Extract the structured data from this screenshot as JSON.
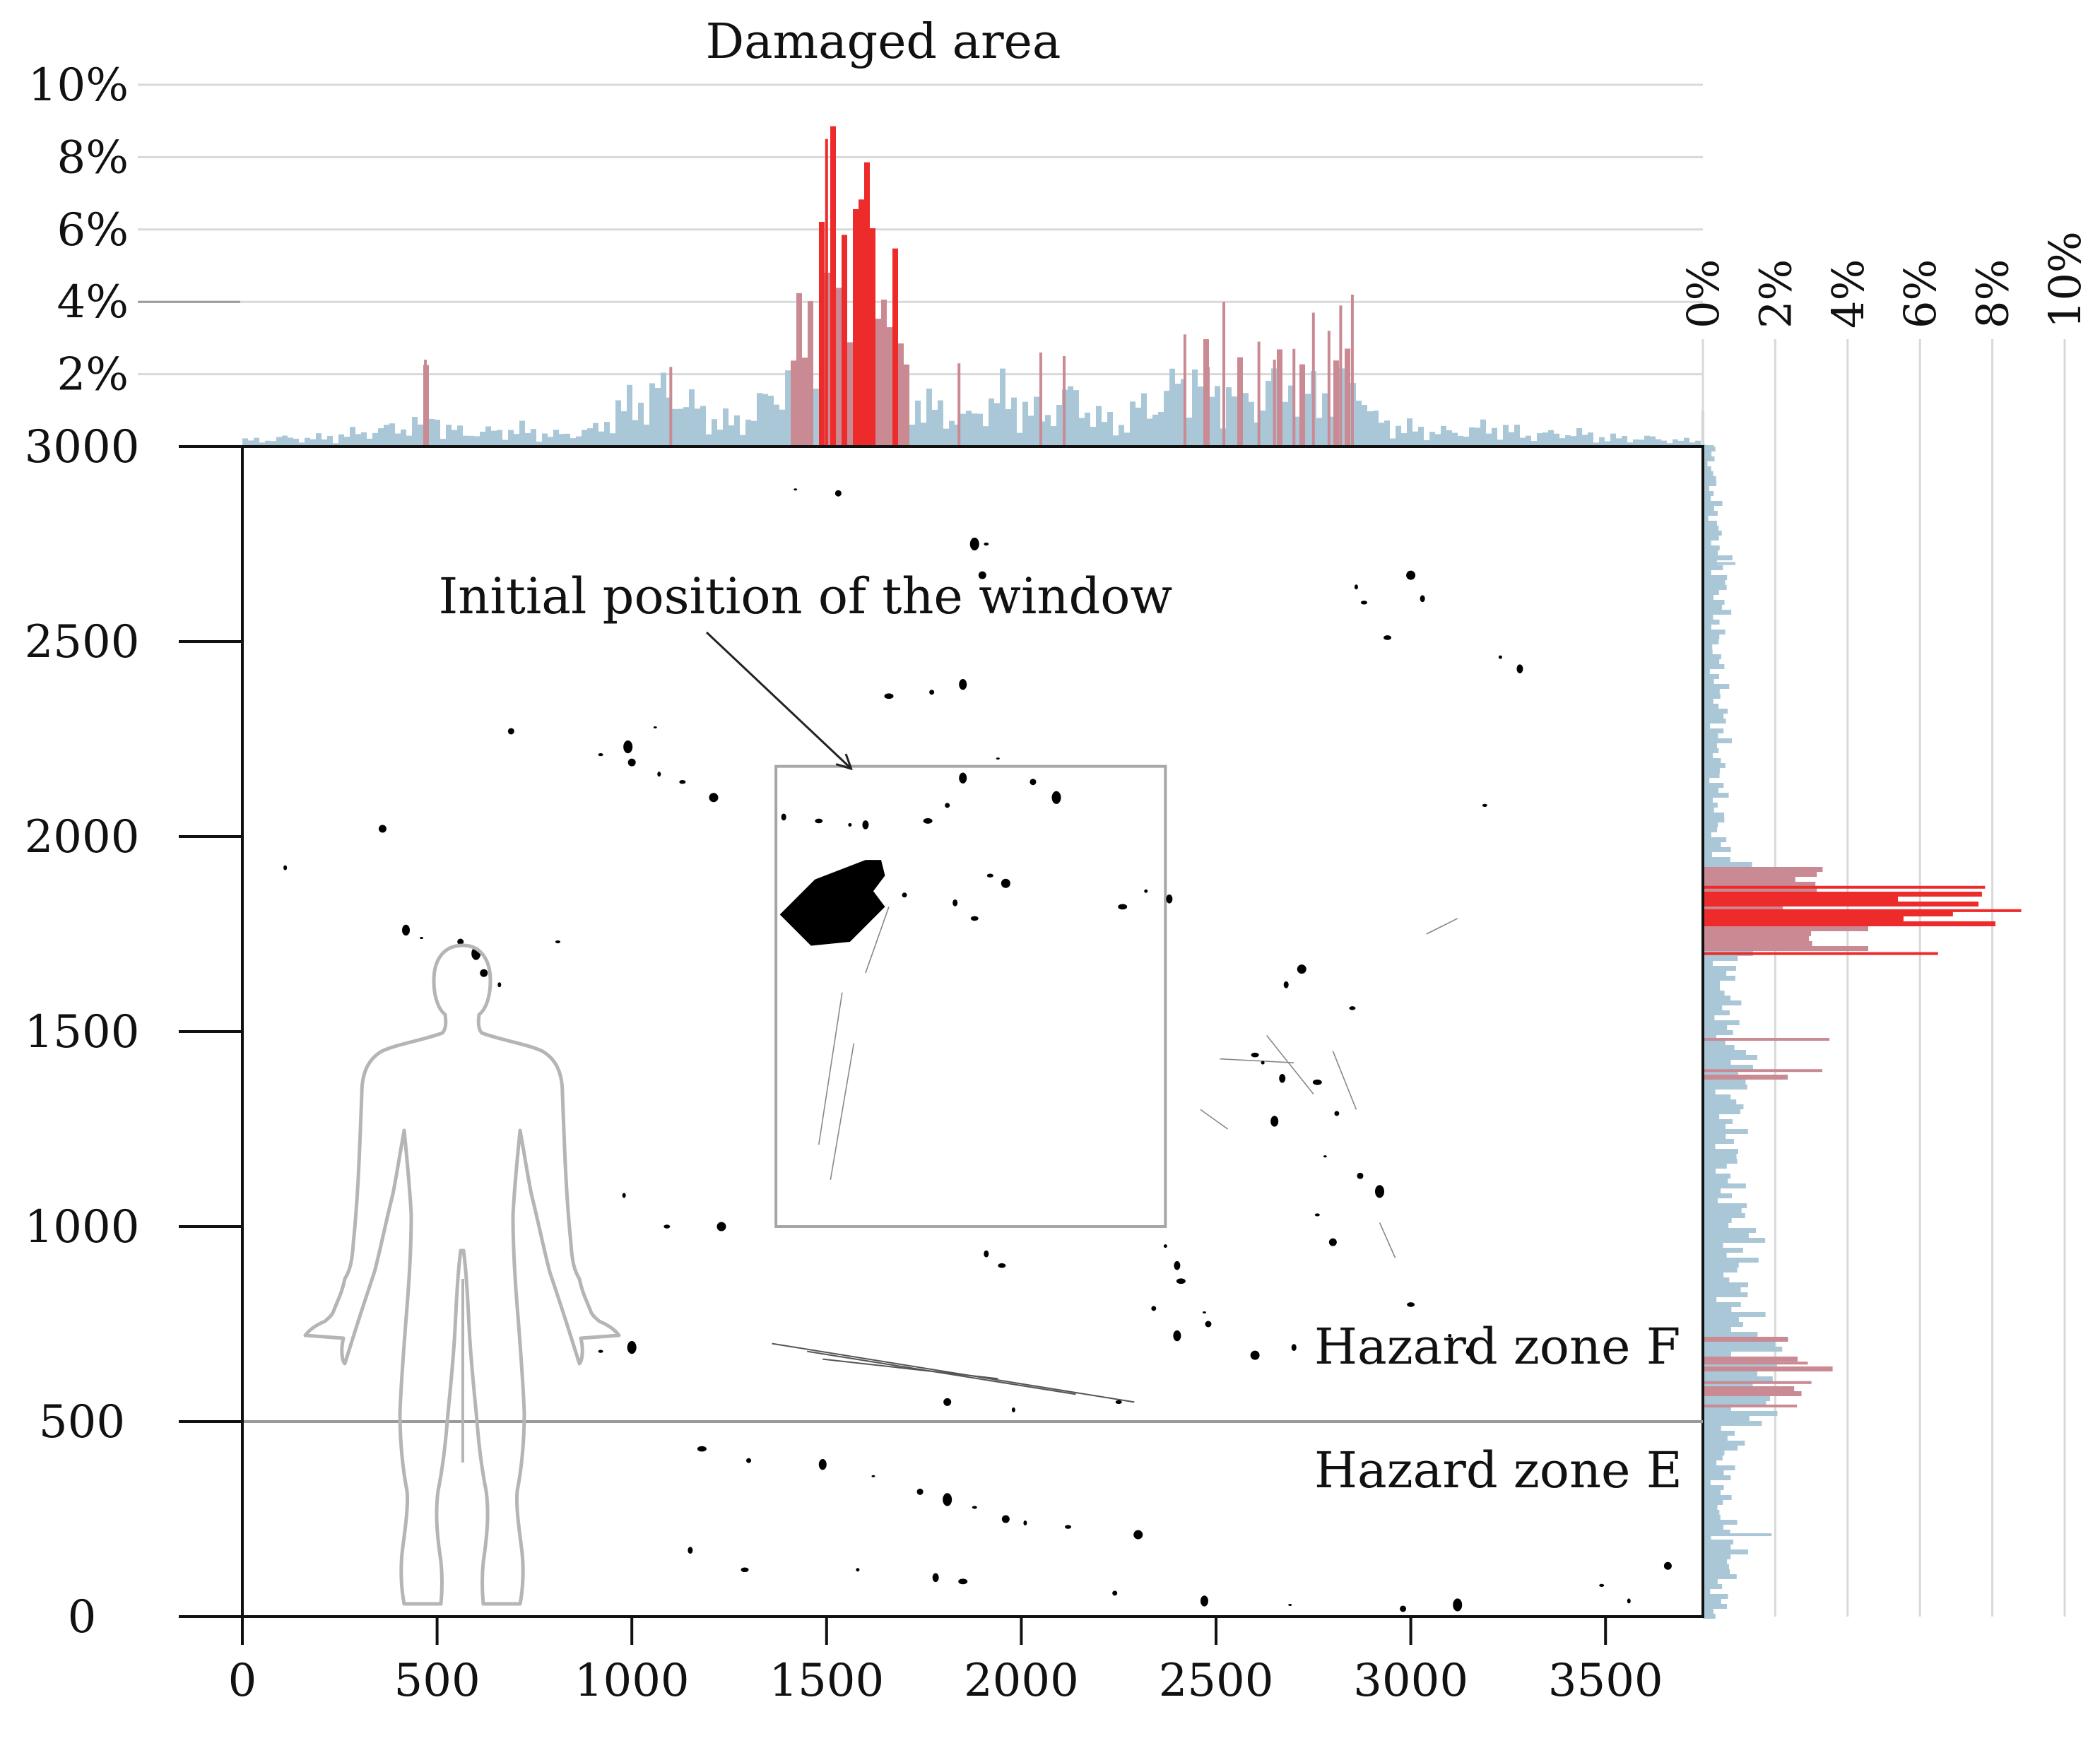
{
  "colors": {
    "background": "#ffffff",
    "axis": "#111111",
    "grid": "#d9d9d9",
    "histogram_low": "#a9c7d6",
    "histogram_mid": "#c98a93",
    "histogram_high": "#ee2b2b",
    "window_outline": "#a6a6a6",
    "zone_line": "#9a9a9a",
    "human_outline": "#b5b5b5",
    "fragment": "#000000"
  },
  "icons": {
    "human_figure": "human-silhouette-icon",
    "arrow": "arrow-pointer-icon"
  },
  "chart_data": [
    {
      "type": "scatter",
      "name_role": "main-fragment-map",
      "xlim": [
        0,
        3750
      ],
      "ylim": [
        0,
        3000
      ],
      "xticks": [
        0,
        500,
        1000,
        1500,
        2000,
        2500,
        3000,
        3500
      ],
      "yticks": [
        0,
        500,
        1000,
        1500,
        2000,
        2500,
        3000
      ],
      "xticklabels": [
        "0",
        "500",
        "1000",
        "1500",
        "2000",
        "2500",
        "3000",
        "3500"
      ],
      "yticklabels": [
        "0",
        "500",
        "1000",
        "1500",
        "2000",
        "2500",
        "3000"
      ],
      "grid": false,
      "window_rect": {
        "x0": 1370,
        "x1": 2370,
        "y0": 1000,
        "y1": 2180
      },
      "zone_boundary_y": 500,
      "annotations": [
        {
          "text": "Initial position of the window",
          "x": 1450,
          "y": 2600,
          "arrow_to": [
            1470,
            2180
          ]
        },
        {
          "text": "Hazard zone F",
          "x": 2750,
          "y": 660
        },
        {
          "text": "Hazard zone E",
          "x": 2750,
          "y": 350
        }
      ],
      "large_fragment": {
        "points": [
          [
            1380,
            1800
          ],
          [
            1470,
            1890
          ],
          [
            1600,
            1940
          ],
          [
            1640,
            1940
          ],
          [
            1650,
            1900
          ],
          [
            1620,
            1860
          ],
          [
            1650,
            1820
          ],
          [
            1560,
            1730
          ],
          [
            1460,
            1720
          ]
        ]
      },
      "fragment_points": [
        [
          1420,
          2890
        ],
        [
          1530,
          2880
        ],
        [
          1880,
          2750
        ],
        [
          1910,
          2750
        ],
        [
          1900,
          2670
        ],
        [
          2860,
          2640
        ],
        [
          2880,
          2600
        ],
        [
          3000,
          2670
        ],
        [
          3030,
          2610
        ],
        [
          2940,
          2510
        ],
        [
          3230,
          2460
        ],
        [
          3280,
          2430
        ],
        [
          1660,
          2360
        ],
        [
          1770,
          2370
        ],
        [
          1850,
          2390
        ],
        [
          1060,
          2280
        ],
        [
          690,
          2270
        ],
        [
          990,
          2230
        ],
        [
          920,
          2210
        ],
        [
          1000,
          2190
        ],
        [
          1070,
          2160
        ],
        [
          1130,
          2140
        ],
        [
          1210,
          2100
        ],
        [
          1390,
          2050
        ],
        [
          1480,
          2040
        ],
        [
          1560,
          2030
        ],
        [
          1600,
          2030
        ],
        [
          1760,
          2040
        ],
        [
          1810,
          2080
        ],
        [
          1850,
          2150
        ],
        [
          1940,
          2200
        ],
        [
          2030,
          2140
        ],
        [
          2090,
          2100
        ],
        [
          3190,
          2080
        ],
        [
          360,
          2020
        ],
        [
          110,
          1920
        ],
        [
          1920,
          1900
        ],
        [
          1960,
          1880
        ],
        [
          1830,
          1830
        ],
        [
          1880,
          1790
        ],
        [
          2320,
          1860
        ],
        [
          2380,
          1840
        ],
        [
          2260,
          1820
        ],
        [
          1700,
          1850
        ],
        [
          420,
          1760
        ],
        [
          460,
          1740
        ],
        [
          560,
          1730
        ],
        [
          600,
          1700
        ],
        [
          810,
          1730
        ],
        [
          620,
          1650
        ],
        [
          660,
          1620
        ],
        [
          2850,
          1560
        ],
        [
          2720,
          1660
        ],
        [
          2680,
          1620
        ],
        [
          2600,
          1440
        ],
        [
          2620,
          1420
        ],
        [
          2670,
          1380
        ],
        [
          2760,
          1370
        ],
        [
          2810,
          1290
        ],
        [
          2650,
          1270
        ],
        [
          2780,
          1180
        ],
        [
          2870,
          1130
        ],
        [
          2920,
          1090
        ],
        [
          2760,
          1030
        ],
        [
          2800,
          960
        ],
        [
          980,
          1080
        ],
        [
          1090,
          1000
        ],
        [
          1230,
          1000
        ],
        [
          1910,
          930
        ],
        [
          1950,
          900
        ],
        [
          2370,
          950
        ],
        [
          2400,
          900
        ],
        [
          2410,
          860
        ],
        [
          2340,
          790
        ],
        [
          2400,
          720
        ],
        [
          2470,
          780
        ],
        [
          2480,
          750
        ],
        [
          1000,
          690
        ],
        [
          920,
          680
        ],
        [
          1810,
          550
        ],
        [
          1980,
          530
        ],
        [
          2250,
          550
        ],
        [
          2600,
          670
        ],
        [
          2700,
          690
        ],
        [
          3000,
          800
        ],
        [
          3100,
          720
        ],
        [
          3150,
          680
        ],
        [
          1180,
          430
        ],
        [
          1300,
          400
        ],
        [
          1490,
          390
        ],
        [
          1620,
          360
        ],
        [
          1740,
          320
        ],
        [
          1810,
          300
        ],
        [
          1880,
          280
        ],
        [
          1960,
          250
        ],
        [
          2010,
          240
        ],
        [
          2120,
          230
        ],
        [
          2300,
          210
        ],
        [
          1150,
          170
        ],
        [
          1290,
          120
        ],
        [
          1580,
          120
        ],
        [
          1780,
          100
        ],
        [
          1850,
          90
        ],
        [
          2240,
          60
        ],
        [
          2470,
          40
        ],
        [
          2690,
          30
        ],
        [
          2980,
          20
        ],
        [
          3120,
          30
        ],
        [
          3490,
          80
        ],
        [
          3660,
          130
        ],
        [
          3560,
          40
        ]
      ],
      "fragment_streaks": [
        [
          [
            1360,
            700
          ],
          [
            2290,
            550
          ]
        ],
        [
          [
            1450,
            680
          ],
          [
            2140,
            570
          ]
        ],
        [
          [
            1490,
            660
          ],
          [
            1940,
            610
          ]
        ],
        [
          [
            2630,
            1490
          ],
          [
            2750,
            1340
          ]
        ],
        [
          [
            2510,
            1430
          ],
          [
            2700,
            1420
          ]
        ],
        [
          [
            2800,
            1450
          ],
          [
            2860,
            1300
          ]
        ],
        [
          [
            2920,
            1010
          ],
          [
            2960,
            920
          ]
        ],
        [
          [
            1570,
            1470
          ],
          [
            1510,
            1120
          ]
        ],
        [
          [
            1540,
            1600
          ],
          [
            1480,
            1210
          ]
        ],
        [
          [
            1660,
            1820
          ],
          [
            1600,
            1650
          ]
        ],
        [
          [
            3040,
            1750
          ],
          [
            3120,
            1790
          ]
        ],
        [
          [
            2460,
            1300
          ],
          [
            2530,
            1250
          ]
        ]
      ]
    },
    {
      "type": "area",
      "title": "Damaged area",
      "axis": "x",
      "ylim": [
        0,
        10
      ],
      "yticks": [
        0,
        2,
        4,
        6,
        8,
        10
      ],
      "yticklabels": [
        "",
        "2%",
        "4%",
        "6%",
        "8%",
        "10%"
      ],
      "x": [
        0,
        100,
        200,
        300,
        350,
        400,
        450,
        470,
        500,
        600,
        700,
        800,
        900,
        950,
        1000,
        1050,
        1100,
        1150,
        1200,
        1250,
        1300,
        1350,
        1400,
        1430,
        1460,
        1480,
        1500,
        1520,
        1540,
        1560,
        1580,
        1600,
        1620,
        1640,
        1660,
        1680,
        1700,
        1750,
        1800,
        1850,
        1900,
        1950,
        2000,
        2050,
        2100,
        2150,
        2200,
        2250,
        2300,
        2350,
        2400,
        2450,
        2500,
        2550,
        2600,
        2650,
        2700,
        2750,
        2800,
        2850,
        2900,
        3000,
        3100,
        3200,
        3300,
        3400,
        3500,
        3600,
        3700,
        3750
      ],
      "values": [
        0.2,
        0.3,
        0.3,
        0.5,
        0.6,
        0.7,
        0.8,
        2.4,
        0.6,
        0.5,
        0.6,
        0.4,
        0.6,
        1.2,
        1.5,
        1.9,
        2.0,
        1.4,
        1.0,
        0.8,
        1.1,
        1.8,
        2.6,
        4.0,
        5.6,
        6.4,
        7.0,
        7.6,
        7.9,
        8.0,
        7.9,
        7.7,
        7.2,
        6.6,
        5.7,
        4.0,
        2.0,
        1.4,
        1.2,
        0.9,
        1.5,
        1.8,
        1.4,
        1.0,
        1.8,
        1.6,
        0.9,
        0.8,
        1.4,
        1.6,
        2.3,
        2.7,
        1.8,
        2.2,
        1.4,
        2.6,
        2.3,
        1.7,
        2.4,
        2.8,
        0.9,
        0.6,
        0.5,
        0.7,
        0.4,
        0.5,
        0.3,
        0.3,
        0.2,
        0.2
      ],
      "spikes": [
        [
          470,
          2.4
        ],
        [
          1100,
          2.2
        ],
        [
          1500,
          8.5
        ],
        [
          1840,
          2.3
        ],
        [
          2050,
          2.6
        ],
        [
          2110,
          2.5
        ],
        [
          2420,
          3.1
        ],
        [
          2480,
          2.2
        ],
        [
          2520,
          4.0
        ],
        [
          2610,
          2.9
        ],
        [
          2650,
          2.4
        ],
        [
          2700,
          2.7
        ],
        [
          2750,
          3.7
        ],
        [
          2790,
          3.2
        ],
        [
          2820,
          3.9
        ],
        [
          2850,
          4.2
        ],
        [
          3750,
          1.0
        ]
      ]
    },
    {
      "type": "area",
      "axis": "y",
      "xlim": [
        0,
        10
      ],
      "xticks": [
        0,
        2,
        4,
        6,
        8,
        10
      ],
      "xticklabels": [
        "0%",
        "2%",
        "4%",
        "6%",
        "8%",
        "10%"
      ],
      "grid": true,
      "y": [
        0,
        100,
        150,
        200,
        300,
        400,
        450,
        500,
        550,
        600,
        650,
        700,
        750,
        800,
        900,
        950,
        1000,
        1050,
        1100,
        1150,
        1200,
        1250,
        1300,
        1350,
        1400,
        1450,
        1500,
        1550,
        1600,
        1650,
        1700,
        1720,
        1750,
        1780,
        1800,
        1820,
        1850,
        1880,
        1900,
        1930,
        1950,
        2000,
        2100,
        2200,
        2300,
        2400,
        2500,
        2600,
        2700,
        2800,
        2900,
        3000
      ],
      "values": [
        0.6,
        0.7,
        1.3,
        0.9,
        0.7,
        0.8,
        1.1,
        1.4,
        2.5,
        2.8,
        3.0,
        2.6,
        1.6,
        1.3,
        1.2,
        1.5,
        1.6,
        1.2,
        1.0,
        0.9,
        1.1,
        1.0,
        1.2,
        1.0,
        2.2,
        1.3,
        0.8,
        1.0,
        0.9,
        0.8,
        1.2,
        4.0,
        5.0,
        7.0,
        8.2,
        8.5,
        7.2,
        5.5,
        4.0,
        2.7,
        0.8,
        0.6,
        0.6,
        0.6,
        0.7,
        0.6,
        0.5,
        0.7,
        0.7,
        0.5,
        0.4,
        0.3
      ],
      "spikes": [
        [
          210,
          1.9
        ],
        [
          540,
          2.6
        ],
        [
          600,
          3.0
        ],
        [
          650,
          2.9
        ],
        [
          1400,
          3.3
        ],
        [
          1480,
          3.5
        ],
        [
          1700,
          6.5
        ],
        [
          1810,
          8.8
        ],
        [
          1870,
          7.8
        ],
        [
          2700,
          0.9
        ],
        [
          3000,
          0.3
        ]
      ]
    }
  ]
}
